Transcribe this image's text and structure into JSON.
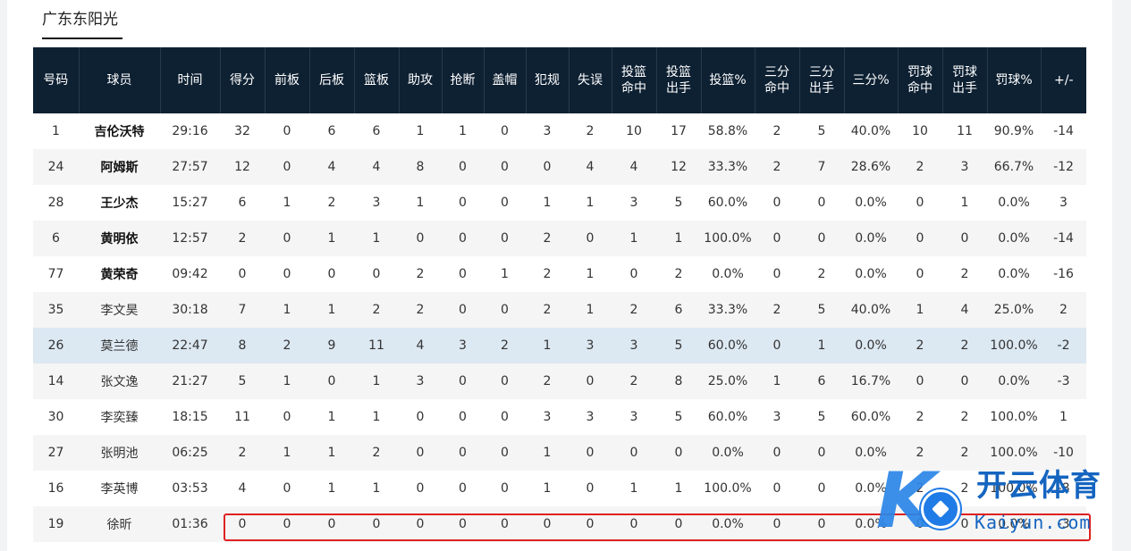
{
  "team": {
    "tab_label": "广东东阳光"
  },
  "columns": [
    "号码",
    "球员",
    "时间",
    "得分",
    "前板",
    "后板",
    "篮板",
    "助攻",
    "抢断",
    "盖帽",
    "犯规",
    "失误",
    "投篮命中",
    "投篮出手",
    "投篮%",
    "三分命中",
    "三分出手",
    "三分%",
    "罚球命中",
    "罚球出手",
    "罚球%",
    "+/-"
  ],
  "column_lines": [
    [
      "号码"
    ],
    [
      "球员"
    ],
    [
      "时间"
    ],
    [
      "得分"
    ],
    [
      "前板"
    ],
    [
      "后板"
    ],
    [
      "篮板"
    ],
    [
      "助攻"
    ],
    [
      "抢断"
    ],
    [
      "盖帽"
    ],
    [
      "犯规"
    ],
    [
      "失误"
    ],
    [
      "投篮",
      "命中"
    ],
    [
      "投篮",
      "出手"
    ],
    [
      "投篮%"
    ],
    [
      "三分",
      "命中"
    ],
    [
      "三分",
      "出手"
    ],
    [
      "三分%"
    ],
    [
      "罚球",
      "命中"
    ],
    [
      "罚球",
      "出手"
    ],
    [
      "罚球%"
    ],
    [
      "+/-"
    ]
  ],
  "rows": [
    {
      "starter": true,
      "cells": [
        "1",
        "吉伦沃特",
        "29:16",
        "32",
        "0",
        "6",
        "6",
        "1",
        "1",
        "0",
        "3",
        "2",
        "10",
        "17",
        "58.8%",
        "2",
        "5",
        "40.0%",
        "10",
        "11",
        "90.9%",
        "-14"
      ]
    },
    {
      "starter": true,
      "cells": [
        "24",
        "阿姆斯",
        "27:57",
        "12",
        "0",
        "4",
        "4",
        "8",
        "0",
        "0",
        "0",
        "4",
        "4",
        "12",
        "33.3%",
        "2",
        "7",
        "28.6%",
        "2",
        "3",
        "66.7%",
        "-12"
      ]
    },
    {
      "starter": true,
      "cells": [
        "28",
        "王少杰",
        "15:27",
        "6",
        "1",
        "2",
        "3",
        "1",
        "0",
        "0",
        "1",
        "1",
        "3",
        "5",
        "60.0%",
        "0",
        "0",
        "0.0%",
        "0",
        "1",
        "0.0%",
        "3"
      ]
    },
    {
      "starter": true,
      "cells": [
        "6",
        "黄明依",
        "12:57",
        "2",
        "0",
        "1",
        "1",
        "0",
        "0",
        "0",
        "2",
        "0",
        "1",
        "1",
        "100.0%",
        "0",
        "0",
        "0.0%",
        "0",
        "0",
        "0.0%",
        "-14"
      ]
    },
    {
      "starter": true,
      "cells": [
        "77",
        "黄荣奇",
        "09:42",
        "0",
        "0",
        "0",
        "0",
        "2",
        "0",
        "1",
        "2",
        "1",
        "0",
        "2",
        "0.0%",
        "0",
        "2",
        "0.0%",
        "0",
        "2",
        "0.0%",
        "-16"
      ]
    },
    {
      "starter": false,
      "cells": [
        "35",
        "李文昊",
        "30:18",
        "7",
        "1",
        "1",
        "2",
        "2",
        "0",
        "0",
        "2",
        "1",
        "2",
        "6",
        "33.3%",
        "2",
        "5",
        "40.0%",
        "1",
        "4",
        "25.0%",
        "2"
      ]
    },
    {
      "starter": false,
      "highlight": true,
      "cells": [
        "26",
        "莫兰德",
        "22:47",
        "8",
        "2",
        "9",
        "11",
        "4",
        "3",
        "2",
        "1",
        "3",
        "3",
        "5",
        "60.0%",
        "0",
        "1",
        "0.0%",
        "2",
        "2",
        "100.0%",
        "-2"
      ]
    },
    {
      "starter": false,
      "cells": [
        "14",
        "张文逸",
        "21:27",
        "5",
        "1",
        "0",
        "1",
        "3",
        "0",
        "0",
        "2",
        "0",
        "2",
        "8",
        "25.0%",
        "1",
        "6",
        "16.7%",
        "0",
        "0",
        "0.0%",
        "-3"
      ]
    },
    {
      "starter": false,
      "cells": [
        "30",
        "李奕臻",
        "18:15",
        "11",
        "0",
        "1",
        "1",
        "0",
        "0",
        "0",
        "3",
        "3",
        "3",
        "5",
        "60.0%",
        "3",
        "5",
        "60.0%",
        "2",
        "2",
        "100.0%",
        "1"
      ]
    },
    {
      "starter": false,
      "cells": [
        "27",
        "张明池",
        "06:25",
        "2",
        "1",
        "1",
        "2",
        "0",
        "0",
        "0",
        "1",
        "0",
        "0",
        "0",
        "0.0%",
        "0",
        "0",
        "0.0%",
        "2",
        "2",
        "100.0%",
        "-10"
      ]
    },
    {
      "starter": false,
      "cells": [
        "16",
        "李英博",
        "03:53",
        "4",
        "0",
        "1",
        "1",
        "0",
        "0",
        "0",
        "1",
        "0",
        "1",
        "1",
        "100.0%",
        "0",
        "0",
        "0.0%",
        "2",
        "2",
        "100.0%",
        "-8"
      ]
    },
    {
      "starter": false,
      "cells": [
        "19",
        "徐昕",
        "01:36",
        "0",
        "0",
        "0",
        "0",
        "0",
        "0",
        "0",
        "0",
        "0",
        "0",
        "0",
        "0.0%",
        "0",
        "0",
        "0.0%",
        "0",
        "0",
        "0.0%",
        "-3"
      ]
    }
  ],
  "colors": {
    "header_bg": "#0e2133",
    "highlight_row": "#dce8f2",
    "annotation": "#e02020",
    "watermark": "#1565c0"
  },
  "watermark": {
    "brand": "开云体育",
    "domain": "Kaiyun.com",
    "logo_letter": "K"
  }
}
